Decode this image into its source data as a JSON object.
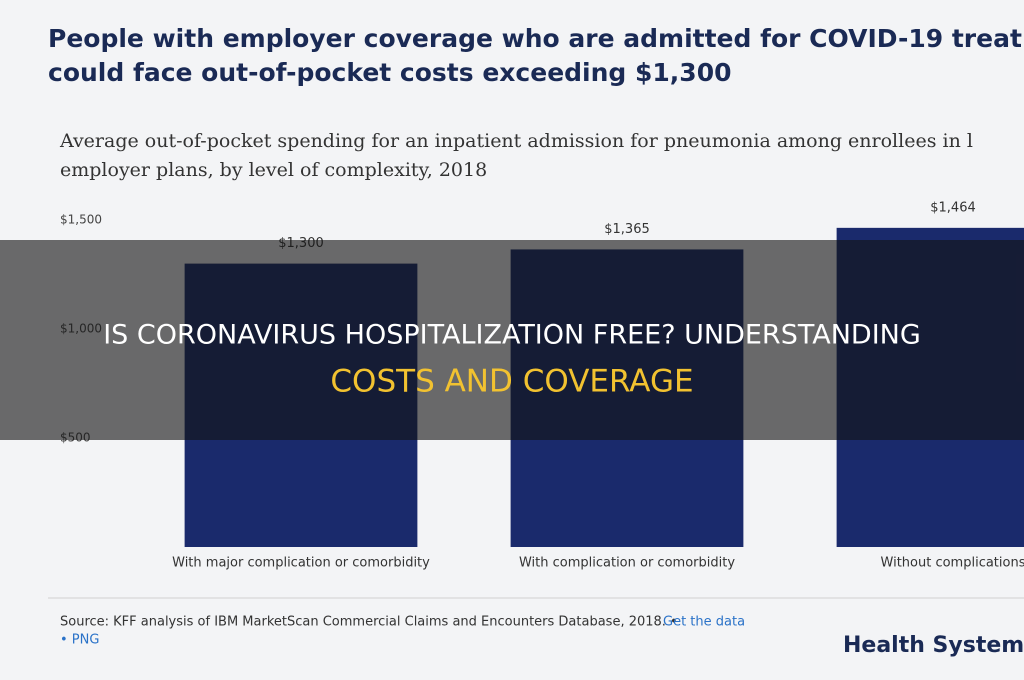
{
  "chart_data": {
    "type": "bar",
    "title": "People with employer coverage who are admitted for COVID-19 treat",
    "title_line2": "could face out-of-pocket costs exceeding $1,300",
    "subtitle": "Average out-of-pocket spending for an inpatient admission for pneumonia among enrollees in l",
    "subtitle_line2": "employer plans, by level of complexity, 2018",
    "categories": [
      "With major complication or comorbidity",
      "With complication or comorbidity",
      "Without complications"
    ],
    "values": [
      1300,
      1365,
      1464
    ],
    "value_labels": [
      "$1,300",
      "$1,365",
      "$1,464"
    ],
    "color": "#1a2a6c",
    "ylim": [
      0,
      1500
    ],
    "yticks": [
      {
        "value": 500,
        "label": "$500"
      },
      {
        "value": 1000,
        "label": "$1,000"
      },
      {
        "value": 1500,
        "label": "$1,500"
      }
    ],
    "source": "Source: KFF analysis of IBM MarketScan Commercial Claims and Encounters Database, 2018. •",
    "source_link": "Get the data",
    "source_png": "• PNG",
    "logo": "Health System T",
    "overlay_line1": "IS CORONAVIRUS HOSPITALIZATION FREE? UNDERSTANDING",
    "overlay_line2": "COSTS AND COVERAGE"
  }
}
